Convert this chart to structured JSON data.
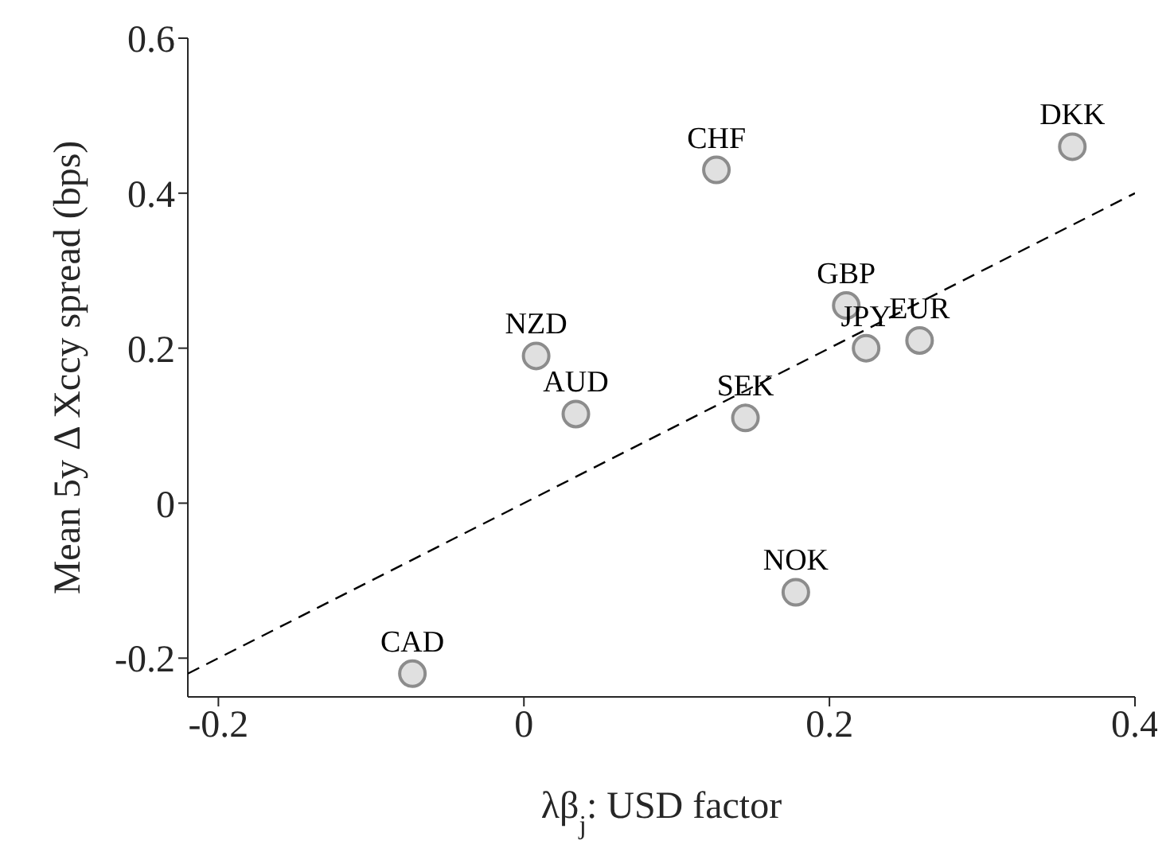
{
  "chart_data": {
    "type": "scatter",
    "xlabel": "λβ$_{j}$: USD factor",
    "ylabel": "Mean 5y Δ Xccy spread (bps)",
    "xlim": [
      -0.22,
      0.4
    ],
    "ylim": [
      -0.25,
      0.6
    ],
    "xticks": [
      -0.2,
      0,
      0.2,
      0.4
    ],
    "yticks": [
      -0.2,
      0,
      0.2,
      0.4,
      0.6
    ],
    "grid": false,
    "legend": false,
    "series": [
      {
        "color": "#e0e0e0",
        "marker": "circle",
        "x": [
          0.126,
          0.359,
          0.211,
          0.224,
          0.259,
          0.008,
          0.034,
          0.145,
          0.178,
          -0.073
        ],
        "values": [
          0.43,
          0.46,
          0.255,
          0.2,
          0.21,
          0.19,
          0.115,
          0.11,
          -0.115,
          -0.22
        ]
      },
      {
        "type": "line",
        "color": "#000000",
        "line_style": "dashed",
        "marker": "none",
        "x": [
          -0.22,
          0.4
        ],
        "values": [
          -0.22,
          0.4
        ]
      }
    ],
    "annotations": [
      {
        "text": "CHF",
        "x": 0.126,
        "y": 0.43
      },
      {
        "text": "DKK",
        "x": 0.359,
        "y": 0.46
      },
      {
        "text": "GBP",
        "x": 0.211,
        "y": 0.255
      },
      {
        "text": "JPY",
        "x": 0.224,
        "y": 0.2
      },
      {
        "text": "EUR",
        "x": 0.259,
        "y": 0.21
      },
      {
        "text": "NZD",
        "x": 0.008,
        "y": 0.19
      },
      {
        "text": "AUD",
        "x": 0.034,
        "y": 0.115
      },
      {
        "text": "SEK",
        "x": 0.145,
        "y": 0.11
      },
      {
        "text": "NOK",
        "x": 0.178,
        "y": -0.115
      },
      {
        "text": "CAD",
        "x": -0.073,
        "y": -0.22
      }
    ]
  }
}
